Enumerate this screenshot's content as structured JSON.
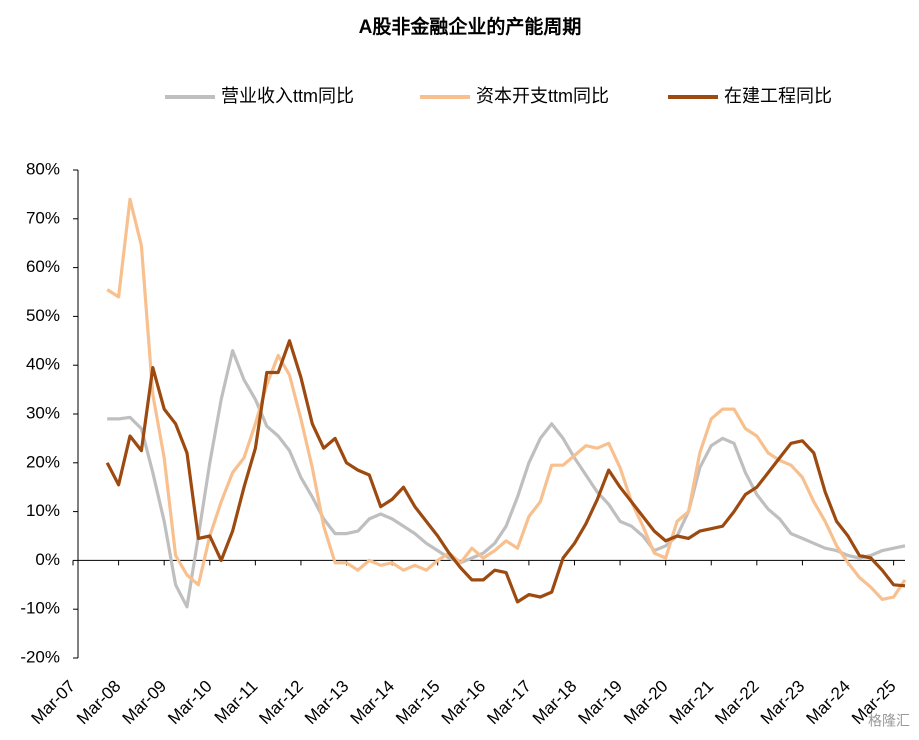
{
  "chart_data": {
    "type": "line",
    "title": "A股非金融企业的产能周期",
    "categories": [
      "Mar-07",
      null,
      null,
      null,
      "Mar-08",
      null,
      null,
      null,
      "Mar-09",
      null,
      null,
      null,
      "Mar-10",
      null,
      null,
      null,
      "Mar-11",
      null,
      null,
      null,
      "Mar-12",
      null,
      null,
      null,
      "Mar-13",
      null,
      null,
      null,
      "Mar-14",
      null,
      null,
      null,
      "Mar-15",
      null,
      null,
      null,
      "Mar-16",
      null,
      null,
      null,
      "Mar-17",
      null,
      null,
      null,
      "Mar-18",
      null,
      null,
      null,
      "Mar-19",
      null,
      null,
      null,
      "Mar-20",
      null,
      null,
      null,
      "Mar-21",
      null,
      null,
      null,
      "Mar-22",
      null,
      null,
      null,
      "Mar-23",
      null,
      null,
      null,
      "Mar-24",
      null,
      null,
      null,
      "Mar-25",
      null
    ],
    "series": [
      {
        "name": "营业收入ttm同比",
        "color": "#bfbfbf",
        "values": [
          null,
          null,
          null,
          29,
          29,
          29.3,
          27,
          18,
          8,
          -5,
          -9.5,
          5,
          20,
          33,
          43,
          37,
          33,
          27.5,
          25.5,
          22.5,
          17,
          13,
          8.5,
          5.5,
          5.5,
          6,
          8.5,
          9.5,
          8.5,
          7,
          5.5,
          3.5,
          2,
          0.5,
          -0.5,
          0.5,
          1.5,
          3.5,
          7,
          13,
          20,
          25,
          28,
          25,
          21,
          17.5,
          14,
          11.5,
          8,
          7,
          5,
          2,
          3,
          5,
          10,
          19,
          23.5,
          25,
          24,
          18,
          13.5,
          10.5,
          8.5,
          5.5,
          4.5,
          3.5,
          2.5,
          2,
          1,
          0.5,
          1,
          2,
          2.5,
          3
        ]
      },
      {
        "name": "资本开支ttm同比",
        "color": "#f8c08f",
        "values": [
          null,
          null,
          null,
          55.5,
          54,
          74,
          64.5,
          34,
          21,
          1,
          -3,
          -5,
          5,
          12,
          18,
          21,
          28,
          36,
          42,
          38,
          29,
          19,
          7,
          -0.5,
          -0.5,
          -2,
          0,
          -1,
          -0.5,
          -2,
          -1,
          -2,
          0,
          1.5,
          -0.5,
          2.5,
          0.5,
          2,
          4,
          2.5,
          9,
          12,
          19.5,
          19.5,
          21.5,
          23.5,
          23,
          24,
          19,
          12,
          7,
          1.5,
          0.5,
          8,
          10,
          22,
          29,
          31,
          31,
          27,
          25.5,
          22,
          20.5,
          19.5,
          17,
          12,
          8,
          3,
          -0.5,
          -3.5,
          -5.5,
          -8,
          -7.5,
          -4
        ]
      },
      {
        "name": "在建工程同比",
        "color": "#9c4a10",
        "values": [
          null,
          null,
          null,
          20,
          15.5,
          25.5,
          22.5,
          39.5,
          31,
          28,
          22,
          4.5,
          5,
          0,
          6,
          15,
          23,
          38.5,
          38.5,
          45,
          37.5,
          28,
          23,
          25,
          20,
          18.5,
          17.5,
          11,
          12.5,
          15,
          11,
          8,
          5,
          1.5,
          -1.5,
          -4,
          -4,
          -2,
          -2.5,
          -8.5,
          -7,
          -7.5,
          -6.5,
          0.5,
          3.5,
          7.5,
          12.5,
          18.5,
          15,
          12,
          9,
          6,
          4,
          5,
          4.5,
          6,
          6.5,
          7,
          10,
          13.5,
          15,
          18,
          21,
          24,
          24.5,
          22,
          14,
          8,
          5,
          1,
          0.5,
          -2,
          -5,
          -5.2
        ]
      }
    ],
    "ylim": [
      -20,
      80
    ],
    "yticks": [
      {
        "value": -20,
        "label": "-20%"
      },
      {
        "value": -10,
        "label": "-10%"
      },
      {
        "value": 0,
        "label": "0%"
      },
      {
        "value": 10,
        "label": "10%"
      },
      {
        "value": 20,
        "label": "20%"
      },
      {
        "value": 30,
        "label": "30%"
      },
      {
        "value": 40,
        "label": "40%"
      },
      {
        "value": 50,
        "label": "50%"
      },
      {
        "value": 60,
        "label": "60%"
      },
      {
        "value": 70,
        "label": "70%"
      },
      {
        "value": 80,
        "label": "80%"
      }
    ],
    "grid": false,
    "watermark": "格隆汇"
  }
}
